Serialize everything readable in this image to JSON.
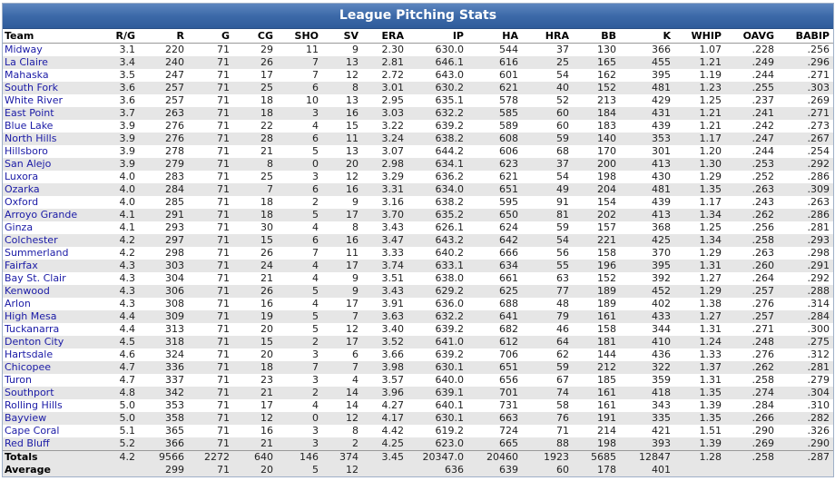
{
  "title": "League Pitching Stats",
  "columns": [
    "Team",
    "R/G",
    "R",
    "G",
    "CG",
    "SHO",
    "SV",
    "ERA",
    "IP",
    "HA",
    "HRA",
    "BB",
    "K",
    "WHIP",
    "OAVG",
    "BABIP"
  ],
  "rows": [
    [
      "Midway",
      "3.1",
      "220",
      "71",
      "29",
      "11",
      "9",
      "2.30",
      "630.0",
      "544",
      "37",
      "130",
      "366",
      "1.07",
      ".228",
      ".256"
    ],
    [
      "La Claire",
      "3.4",
      "240",
      "71",
      "26",
      "7",
      "13",
      "2.81",
      "646.1",
      "616",
      "25",
      "165",
      "455",
      "1.21",
      ".249",
      ".296"
    ],
    [
      "Mahaska",
      "3.5",
      "247",
      "71",
      "17",
      "7",
      "12",
      "2.72",
      "643.0",
      "601",
      "54",
      "162",
      "395",
      "1.19",
      ".244",
      ".271"
    ],
    [
      "South Fork",
      "3.6",
      "257",
      "71",
      "25",
      "6",
      "8",
      "3.01",
      "630.2",
      "621",
      "40",
      "152",
      "481",
      "1.23",
      ".255",
      ".303"
    ],
    [
      "White River",
      "3.6",
      "257",
      "71",
      "18",
      "10",
      "13",
      "2.95",
      "635.1",
      "578",
      "52",
      "213",
      "429",
      "1.25",
      ".237",
      ".269"
    ],
    [
      "East Point",
      "3.7",
      "263",
      "71",
      "18",
      "3",
      "16",
      "3.03",
      "632.2",
      "585",
      "60",
      "184",
      "431",
      "1.21",
      ".241",
      ".271"
    ],
    [
      "Blue Lake",
      "3.9",
      "276",
      "71",
      "22",
      "4",
      "15",
      "3.22",
      "639.2",
      "589",
      "60",
      "183",
      "439",
      "1.21",
      ".242",
      ".273"
    ],
    [
      "North Hills",
      "3.9",
      "276",
      "71",
      "28",
      "6",
      "11",
      "3.24",
      "638.2",
      "608",
      "59",
      "140",
      "353",
      "1.17",
      ".247",
      ".267"
    ],
    [
      "Hillsboro",
      "3.9",
      "278",
      "71",
      "21",
      "5",
      "13",
      "3.07",
      "644.2",
      "606",
      "68",
      "170",
      "301",
      "1.20",
      ".244",
      ".254"
    ],
    [
      "San Alejo",
      "3.9",
      "279",
      "71",
      "8",
      "0",
      "20",
      "2.98",
      "634.1",
      "623",
      "37",
      "200",
      "413",
      "1.30",
      ".253",
      ".292"
    ],
    [
      "Luxora",
      "4.0",
      "283",
      "71",
      "25",
      "3",
      "12",
      "3.29",
      "636.2",
      "621",
      "54",
      "198",
      "430",
      "1.29",
      ".252",
      ".286"
    ],
    [
      "Ozarka",
      "4.0",
      "284",
      "71",
      "7",
      "6",
      "16",
      "3.31",
      "634.0",
      "651",
      "49",
      "204",
      "481",
      "1.35",
      ".263",
      ".309"
    ],
    [
      "Oxford",
      "4.0",
      "285",
      "71",
      "18",
      "2",
      "9",
      "3.16",
      "638.2",
      "595",
      "91",
      "154",
      "439",
      "1.17",
      ".243",
      ".263"
    ],
    [
      "Arroyo Grande",
      "4.1",
      "291",
      "71",
      "18",
      "5",
      "17",
      "3.70",
      "635.2",
      "650",
      "81",
      "202",
      "413",
      "1.34",
      ".262",
      ".286"
    ],
    [
      "Ginza",
      "4.1",
      "293",
      "71",
      "30",
      "4",
      "8",
      "3.43",
      "626.1",
      "624",
      "59",
      "157",
      "368",
      "1.25",
      ".256",
      ".281"
    ],
    [
      "Colchester",
      "4.2",
      "297",
      "71",
      "15",
      "6",
      "16",
      "3.47",
      "643.2",
      "642",
      "54",
      "221",
      "425",
      "1.34",
      ".258",
      ".293"
    ],
    [
      "Summerland",
      "4.2",
      "298",
      "71",
      "26",
      "7",
      "11",
      "3.33",
      "640.2",
      "666",
      "56",
      "158",
      "370",
      "1.29",
      ".263",
      ".298"
    ],
    [
      "Fairfax",
      "4.3",
      "303",
      "71",
      "24",
      "4",
      "17",
      "3.74",
      "633.1",
      "634",
      "55",
      "196",
      "395",
      "1.31",
      ".260",
      ".291"
    ],
    [
      "Bay St. Clair",
      "4.3",
      "304",
      "71",
      "21",
      "4",
      "9",
      "3.51",
      "638.0",
      "661",
      "63",
      "152",
      "392",
      "1.27",
      ".264",
      ".292"
    ],
    [
      "Kenwood",
      "4.3",
      "306",
      "71",
      "26",
      "5",
      "9",
      "3.43",
      "629.2",
      "625",
      "77",
      "189",
      "452",
      "1.29",
      ".257",
      ".288"
    ],
    [
      "Arlon",
      "4.3",
      "308",
      "71",
      "16",
      "4",
      "17",
      "3.91",
      "636.0",
      "688",
      "48",
      "189",
      "402",
      "1.38",
      ".276",
      ".314"
    ],
    [
      "High Mesa",
      "4.4",
      "309",
      "71",
      "19",
      "5",
      "7",
      "3.63",
      "632.2",
      "641",
      "79",
      "161",
      "433",
      "1.27",
      ".257",
      ".284"
    ],
    [
      "Tuckanarra",
      "4.4",
      "313",
      "71",
      "20",
      "5",
      "12",
      "3.40",
      "639.2",
      "682",
      "46",
      "158",
      "344",
      "1.31",
      ".271",
      ".300"
    ],
    [
      "Denton City",
      "4.5",
      "318",
      "71",
      "15",
      "2",
      "17",
      "3.52",
      "641.0",
      "612",
      "64",
      "181",
      "410",
      "1.24",
      ".248",
      ".275"
    ],
    [
      "Hartsdale",
      "4.6",
      "324",
      "71",
      "20",
      "3",
      "6",
      "3.66",
      "639.2",
      "706",
      "62",
      "144",
      "436",
      "1.33",
      ".276",
      ".312"
    ],
    [
      "Chicopee",
      "4.7",
      "336",
      "71",
      "18",
      "7",
      "7",
      "3.98",
      "630.1",
      "651",
      "59",
      "212",
      "322",
      "1.37",
      ".262",
      ".281"
    ],
    [
      "Turon",
      "4.7",
      "337",
      "71",
      "23",
      "3",
      "4",
      "3.57",
      "640.0",
      "656",
      "67",
      "185",
      "359",
      "1.31",
      ".258",
      ".279"
    ],
    [
      "Southport",
      "4.8",
      "342",
      "71",
      "21",
      "2",
      "14",
      "3.96",
      "639.1",
      "701",
      "74",
      "161",
      "418",
      "1.35",
      ".274",
      ".304"
    ],
    [
      "Rolling Hills",
      "5.0",
      "353",
      "71",
      "17",
      "4",
      "14",
      "4.27",
      "640.1",
      "731",
      "58",
      "161",
      "343",
      "1.39",
      ".284",
      ".310"
    ],
    [
      "Bayview",
      "5.0",
      "358",
      "71",
      "12",
      "0",
      "12",
      "4.17",
      "630.1",
      "663",
      "76",
      "191",
      "335",
      "1.35",
      ".266",
      ".282"
    ],
    [
      "Cape Coral",
      "5.1",
      "365",
      "71",
      "16",
      "3",
      "8",
      "4.42",
      "619.2",
      "724",
      "71",
      "214",
      "421",
      "1.51",
      ".290",
      ".326"
    ],
    [
      "Red Bluff",
      "5.2",
      "366",
      "71",
      "21",
      "3",
      "2",
      "4.25",
      "623.0",
      "665",
      "88",
      "198",
      "393",
      "1.39",
      ".269",
      ".290"
    ]
  ],
  "totals": [
    "Totals",
    "4.2",
    "9566",
    "2272",
    "640",
    "146",
    "374",
    "3.45",
    "20347.0",
    "20460",
    "1923",
    "5685",
    "12847",
    "1.28",
    ".258",
    ".287"
  ],
  "average": [
    "Average",
    "",
    "299",
    "71",
    "20",
    "5",
    "12",
    "",
    "636",
    "639",
    "60",
    "178",
    "401",
    "",
    "",
    ""
  ]
}
